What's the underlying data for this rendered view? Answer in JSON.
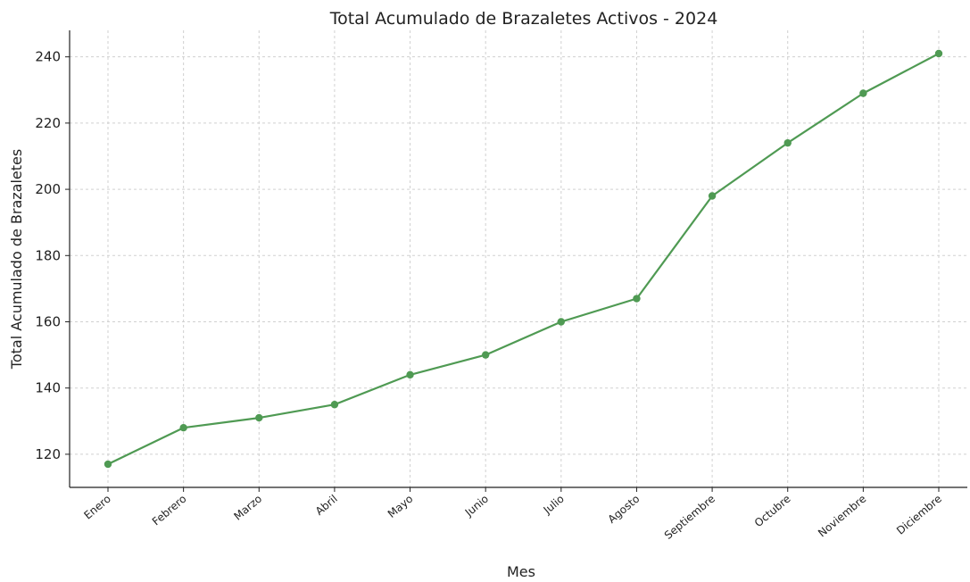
{
  "chart_data": {
    "type": "line",
    "title": "Total Acumulado de Brazaletes Activos - 2024",
    "xlabel": "Mes",
    "ylabel": "Total Acumulado de Brazaletes",
    "categories": [
      "Enero",
      "Febrero",
      "Marzo",
      "Abril",
      "Mayo",
      "Junio",
      "Julio",
      "Agosto",
      "Septiembre",
      "Octubre",
      "Noviembre",
      "Diciembre"
    ],
    "series": [
      {
        "values": [
          117,
          128,
          131,
          135,
          144,
          150,
          160,
          167,
          198,
          214,
          229,
          241
        ],
        "color": "#4f9a53"
      }
    ],
    "ylim": [
      110,
      248
    ],
    "yticks": [
      120,
      140,
      160,
      180,
      200,
      220,
      240
    ],
    "grid": true,
    "legend": "none"
  }
}
